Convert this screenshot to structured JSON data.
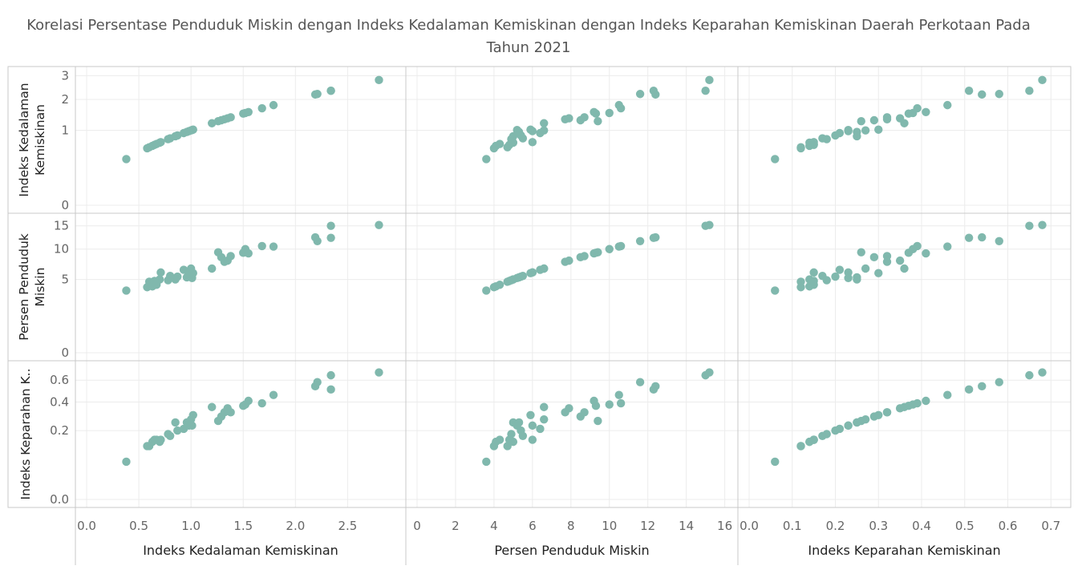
{
  "title_line1": "Korelasi Persentase Penduduk Miskin dengan Indeks Kedalaman Kemiskinan dengan Indeks Keparahan Kemiskinan Daerah Perkotaan Pada",
  "title_line2": "Tahun 2021",
  "colors": {
    "point": "#80b8ad",
    "grid": "#ececec",
    "border": "#c9c9c9"
  },
  "chart_data": {
    "type": "scatter",
    "variables": [
      {
        "key": "p1",
        "column_label": "Indeks Kedalaman Kemiskinan",
        "row_label": [
          "Indeks Kedalaman",
          "Kemiskinan"
        ]
      },
      {
        "key": "p0",
        "column_label": "Persen Penduduk Miskin",
        "row_label": [
          "Persen Penduduk",
          "Miskin"
        ]
      },
      {
        "key": "p2",
        "column_label": "Indeks Keparahan Kemiskinan",
        "row_label": [
          "Indeks Keparahan K.."
        ]
      }
    ],
    "row_order": [
      "p1",
      "p0",
      "p2"
    ],
    "col_order": [
      "p1",
      "p0",
      "p2"
    ],
    "y_ticks": {
      "p1": [
        "0",
        "1",
        "2",
        "3"
      ],
      "p0": [
        "0",
        "5",
        "10",
        "15"
      ],
      "p2": [
        "0.0",
        "0.2",
        "0.4",
        "0.6"
      ]
    },
    "x_ticks": {
      "p1": [
        "0.0",
        "0.5",
        "1.0",
        "1.5",
        "2.0",
        "2.5"
      ],
      "p0": [
        "0",
        "2",
        "4",
        "6",
        "8",
        "10",
        "12",
        "14",
        "16"
      ],
      "p2": [
        "0.0",
        "0.1",
        "0.2",
        "0.3",
        "0.4",
        "0.5",
        "0.6",
        "0.7"
      ]
    },
    "y_scale": "sqrt",
    "x_scale": "linear",
    "x_range": {
      "p1": [
        0,
        2.95
      ],
      "p0": [
        0,
        16.1
      ],
      "p2": [
        0,
        0.72
      ]
    },
    "y_range": {
      "p1": [
        0,
        3.05
      ],
      "p0": [
        0,
        16.1
      ],
      "p2": [
        0,
        0.72
      ]
    },
    "points": [
      {
        "p1": 0.38,
        "p0": 3.6,
        "p2": 0.06
      },
      {
        "p1": 0.58,
        "p0": 4.0,
        "p2": 0.12
      },
      {
        "p1": 0.6,
        "p0": 4.7,
        "p2": 0.12
      },
      {
        "p1": 0.63,
        "p0": 4.1,
        "p2": 0.14
      },
      {
        "p1": 0.65,
        "p0": 4.8,
        "p2": 0.15
      },
      {
        "p1": 0.67,
        "p0": 4.3,
        "p2": 0.15
      },
      {
        "p1": 0.7,
        "p0": 5.0,
        "p2": 0.14
      },
      {
        "p1": 0.71,
        "p0": 6.0,
        "p2": 0.15
      },
      {
        "p1": 0.78,
        "p0": 4.9,
        "p2": 0.18
      },
      {
        "p1": 0.8,
        "p0": 5.5,
        "p2": 0.17
      },
      {
        "p1": 0.85,
        "p0": 5.0,
        "p2": 0.25
      },
      {
        "p1": 0.87,
        "p0": 5.4,
        "p2": 0.2
      },
      {
        "p1": 0.93,
        "p0": 6.4,
        "p2": 0.21
      },
      {
        "p1": 0.96,
        "p0": 5.3,
        "p2": 0.25
      },
      {
        "p1": 0.98,
        "p0": 6.0,
        "p2": 0.23
      },
      {
        "p1": 1.0,
        "p0": 6.6,
        "p2": 0.27
      },
      {
        "p1": 1.01,
        "p0": 5.2,
        "p2": 0.23
      },
      {
        "p1": 1.02,
        "p0": 5.9,
        "p2": 0.3
      },
      {
        "p1": 1.2,
        "p0": 6.6,
        "p2": 0.36
      },
      {
        "p1": 1.26,
        "p0": 9.4,
        "p2": 0.26
      },
      {
        "p1": 1.29,
        "p0": 8.5,
        "p2": 0.29
      },
      {
        "p1": 1.32,
        "p0": 7.7,
        "p2": 0.32
      },
      {
        "p1": 1.35,
        "p0": 7.9,
        "p2": 0.35
      },
      {
        "p1": 1.38,
        "p0": 8.7,
        "p2": 0.32
      },
      {
        "p1": 1.5,
        "p0": 9.3,
        "p2": 0.37
      },
      {
        "p1": 1.52,
        "p0": 10.0,
        "p2": 0.38
      },
      {
        "p1": 1.55,
        "p0": 9.2,
        "p2": 0.41
      },
      {
        "p1": 1.68,
        "p0": 10.6,
        "p2": 0.39
      },
      {
        "p1": 1.79,
        "p0": 10.5,
        "p2": 0.46
      },
      {
        "p1": 2.19,
        "p0": 12.4,
        "p2": 0.54
      },
      {
        "p1": 2.21,
        "p0": 11.6,
        "p2": 0.58
      },
      {
        "p1": 2.34,
        "p0": 12.3,
        "p2": 0.51
      },
      {
        "p1": 2.34,
        "p0": 15.0,
        "p2": 0.65
      },
      {
        "p1": 2.8,
        "p0": 15.2,
        "p2": 0.68
      }
    ],
    "grid": true,
    "legend": "none"
  }
}
